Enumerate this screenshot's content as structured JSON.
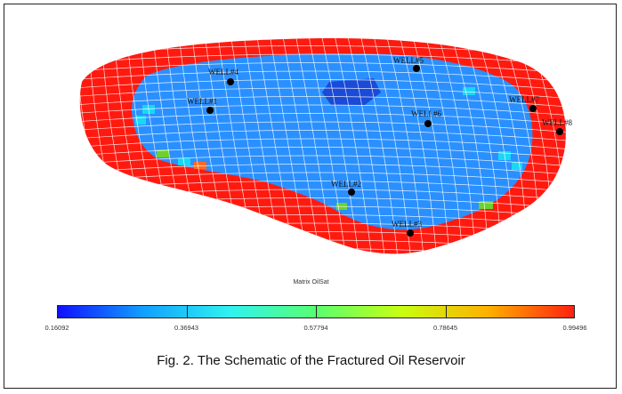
{
  "figure": {
    "colorbar_title": "Matrix OilSat",
    "colorbar_ticks": [
      "0.16092",
      "0.36943",
      "0.57794",
      "0.78645",
      "0.99496"
    ],
    "colorbar_colors": [
      "#1010ff",
      "#11a0ff",
      "#2ff2f0",
      "#58ff70",
      "#c8ff10",
      "#ffb000",
      "#ff2010"
    ],
    "caption": "Fig. 2. The Schematic of the Fractured Oil Reservoir",
    "colors": {
      "outer_ring": "#ff1a10",
      "inner_region": "#2a90ff",
      "dark_patch": "#1a4ad6",
      "cyan_cell": "#19d7f5",
      "green_cell": "#6ad12e",
      "orange_cell": "#ff6a20",
      "grid_line": "#ffffff",
      "well_marker": "#000000"
    },
    "wells": [
      {
        "label": "WELL#4"
      },
      {
        "label": "WELL#1"
      },
      {
        "label": "WELL#5"
      },
      {
        "label": "WELL#6"
      },
      {
        "label": "WELL#7"
      },
      {
        "label": "WELL#8"
      },
      {
        "label": "WELL#2"
      },
      {
        "label": "WELL#3"
      }
    ]
  }
}
